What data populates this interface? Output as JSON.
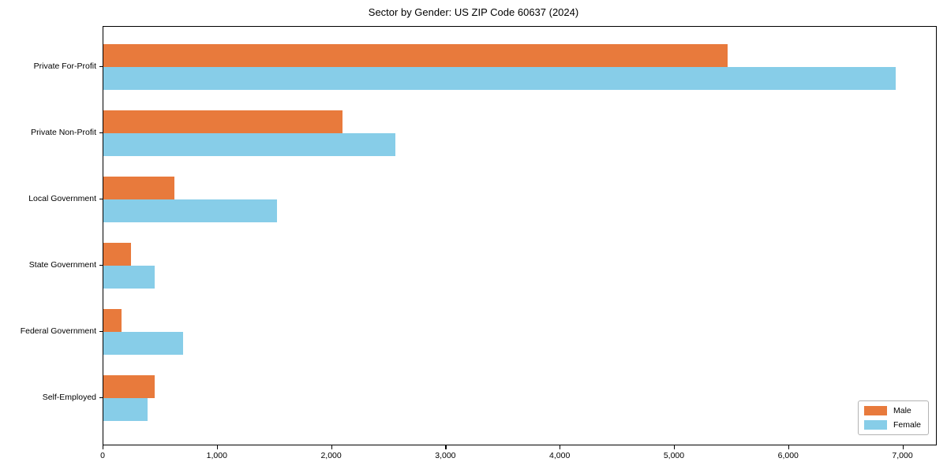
{
  "chart_data": {
    "type": "bar",
    "orientation": "horizontal",
    "title": "Sector by Gender: US ZIP Code 60637 (2024)",
    "categories": [
      "Private For-Profit",
      "Private Non-Profit",
      "Local Government",
      "State Government",
      "Federal Government",
      "Self-Employed"
    ],
    "series": [
      {
        "name": "Male",
        "color": "#E87A3C",
        "values": [
          5470,
          2100,
          620,
          240,
          160,
          450
        ]
      },
      {
        "name": "Female",
        "color": "#87CDE8",
        "values": [
          6950,
          2560,
          1520,
          450,
          700,
          390
        ]
      }
    ],
    "xlabel": "",
    "ylabel": "",
    "xlim": [
      0,
      7300
    ],
    "xticks": [
      0,
      1000,
      2000,
      3000,
      4000,
      5000,
      6000,
      7000
    ],
    "grid": false,
    "legend_position": "lower right",
    "axis_color": "#000000",
    "background_color": "#ffffff"
  }
}
